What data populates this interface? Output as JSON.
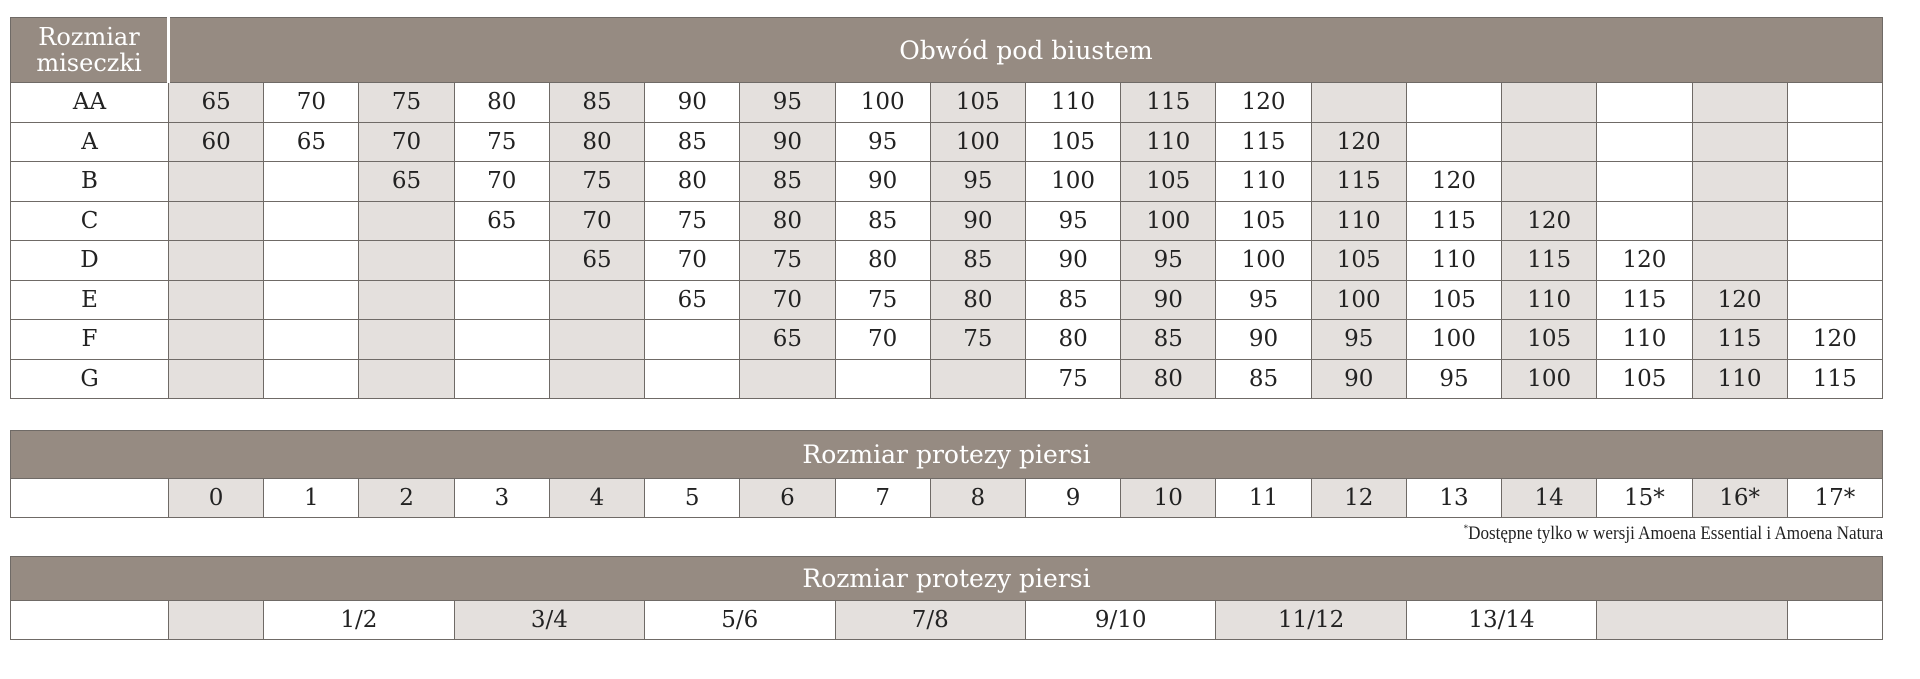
{
  "bra_table": {
    "corner_label": "Rozmiar miseczki",
    "header": "Obwód pod biustem",
    "rows": [
      {
        "cup": "AA",
        "values": [
          "65",
          "70",
          "75",
          "80",
          "85",
          "90",
          "95",
          "100",
          "105",
          "110",
          "115",
          "120",
          "",
          "",
          "",
          "",
          "",
          ""
        ]
      },
      {
        "cup": "A",
        "values": [
          "60",
          "65",
          "70",
          "75",
          "80",
          "85",
          "90",
          "95",
          "100",
          "105",
          "110",
          "115",
          "120",
          "",
          "",
          "",
          "",
          ""
        ]
      },
      {
        "cup": "B",
        "values": [
          "",
          "",
          "65",
          "70",
          "75",
          "80",
          "85",
          "90",
          "95",
          "100",
          "105",
          "110",
          "115",
          "120",
          "",
          "",
          "",
          ""
        ]
      },
      {
        "cup": "C",
        "values": [
          "",
          "",
          "",
          "65",
          "70",
          "75",
          "80",
          "85",
          "90",
          "95",
          "100",
          "105",
          "110",
          "115",
          "120",
          "",
          "",
          ""
        ]
      },
      {
        "cup": "D",
        "values": [
          "",
          "",
          "",
          "",
          "65",
          "70",
          "75",
          "80",
          "85",
          "90",
          "95",
          "100",
          "105",
          "110",
          "115",
          "120",
          "",
          ""
        ]
      },
      {
        "cup": "E",
        "values": [
          "",
          "",
          "",
          "",
          "",
          "65",
          "70",
          "75",
          "80",
          "85",
          "90",
          "95",
          "100",
          "105",
          "110",
          "115",
          "120",
          ""
        ]
      },
      {
        "cup": "F",
        "values": [
          "",
          "",
          "",
          "",
          "",
          "",
          "65",
          "70",
          "75",
          "80",
          "85",
          "90",
          "95",
          "100",
          "105",
          "110",
          "115",
          "120"
        ]
      },
      {
        "cup": "G",
        "values": [
          "",
          "",
          "",
          "",
          "",
          "",
          "",
          "",
          "",
          "75",
          "80",
          "85",
          "90",
          "95",
          "100",
          "105",
          "110",
          "115"
        ]
      }
    ]
  },
  "prosthesis_table": {
    "header": "Rozmiar protezy piersi",
    "values": [
      "0",
      "1",
      "2",
      "3",
      "4",
      "5",
      "6",
      "7",
      "8",
      "9",
      "10",
      "11",
      "12",
      "13",
      "14",
      "15*",
      "16*",
      "17*"
    ]
  },
  "footnote": "Dostępne tylko w wersji Amoena Essential i Amoena Natura",
  "footnote_mark": "*",
  "paired_table": {
    "header": "Rozmiar protezy piersi",
    "cells": [
      {
        "text": "",
        "span": 1,
        "shaded": true
      },
      {
        "text": "1/2",
        "span": 2,
        "shaded": false
      },
      {
        "text": "3/4",
        "span": 2,
        "shaded": true
      },
      {
        "text": "5/6",
        "span": 2,
        "shaded": false
      },
      {
        "text": "7/8",
        "span": 2,
        "shaded": true
      },
      {
        "text": "9/10",
        "span": 2,
        "shaded": false
      },
      {
        "text": "11/12",
        "span": 2,
        "shaded": true
      },
      {
        "text": "13/14",
        "span": 2,
        "shaded": false
      },
      {
        "text": "",
        "span": 2,
        "shaded": true
      },
      {
        "text": "",
        "span": 1,
        "shaded": false
      }
    ]
  },
  "colors": {
    "header": "#968b82",
    "shaded": "#e4e0dd",
    "border": "#6f6a66"
  }
}
